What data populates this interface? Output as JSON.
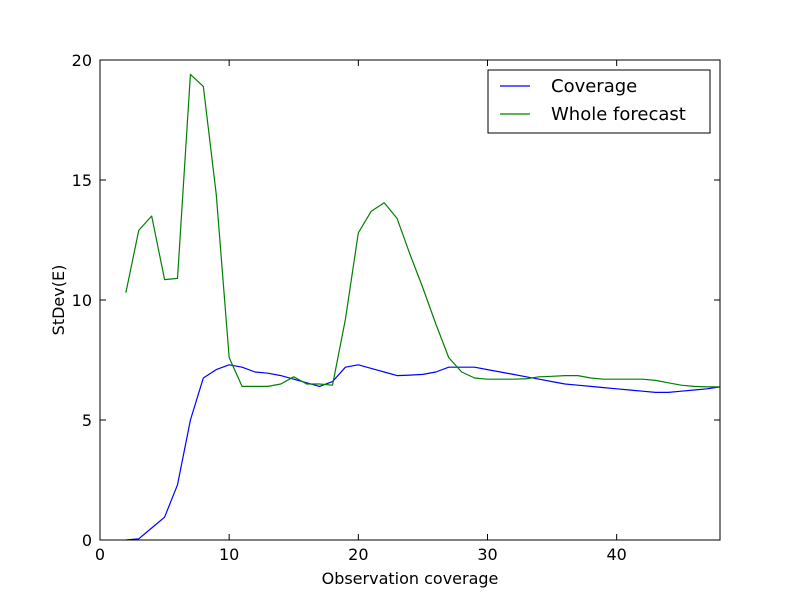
{
  "chart_data": {
    "type": "line",
    "title": "",
    "xlabel": "Observation coverage",
    "ylabel": "StDev(E)",
    "xlim": [
      0,
      48
    ],
    "ylim": [
      0,
      20
    ],
    "xticks": [
      0,
      10,
      20,
      30,
      40
    ],
    "yticks": [
      0,
      5,
      10,
      15,
      20
    ],
    "grid": false,
    "legend_position": "top-right",
    "series": [
      {
        "name": "Coverage",
        "color": "#0000ff",
        "x": [
          2,
          3,
          4,
          5,
          6,
          7,
          8,
          9,
          10,
          11,
          12,
          13,
          14,
          15,
          16,
          17,
          18,
          19,
          20,
          21,
          22,
          23,
          24,
          25,
          26,
          27,
          28,
          29,
          30,
          31,
          32,
          33,
          34,
          35,
          36,
          37,
          38,
          39,
          40,
          41,
          42,
          43,
          44,
          45,
          46,
          47,
          48
        ],
        "y": [
          0.0,
          0.05,
          0.5,
          0.95,
          2.3,
          5.0,
          6.75,
          7.1,
          7.3,
          7.2,
          7.0,
          6.95,
          6.85,
          6.7,
          6.55,
          6.4,
          6.6,
          7.2,
          7.3,
          7.15,
          7.0,
          6.85,
          6.87,
          6.9,
          7.0,
          7.2,
          7.2,
          7.2,
          7.1,
          7.0,
          6.9,
          6.8,
          6.7,
          6.6,
          6.5,
          6.45,
          6.4,
          6.35,
          6.3,
          6.25,
          6.2,
          6.15,
          6.15,
          6.2,
          6.25,
          6.3,
          6.38
        ]
      },
      {
        "name": "Whole forecast",
        "color": "#008000",
        "x": [
          2,
          3,
          4,
          5,
          6,
          7,
          8,
          9,
          10,
          11,
          12,
          13,
          14,
          15,
          16,
          17,
          18,
          19,
          20,
          21,
          22,
          23,
          24,
          25,
          26,
          27,
          28,
          29,
          30,
          31,
          32,
          33,
          34,
          35,
          36,
          37,
          38,
          39,
          40,
          41,
          42,
          43,
          44,
          45,
          46,
          47,
          48
        ],
        "y": [
          10.3,
          12.9,
          13.5,
          10.85,
          10.9,
          19.4,
          18.9,
          14.4,
          7.6,
          6.4,
          6.4,
          6.4,
          6.5,
          6.8,
          6.5,
          6.5,
          6.45,
          9.2,
          12.8,
          13.7,
          14.05,
          13.4,
          11.9,
          10.5,
          9.0,
          7.6,
          7.0,
          6.75,
          6.7,
          6.7,
          6.7,
          6.72,
          6.8,
          6.82,
          6.85,
          6.85,
          6.75,
          6.7,
          6.7,
          6.7,
          6.7,
          6.65,
          6.55,
          6.45,
          6.4,
          6.38,
          6.38
        ]
      }
    ]
  }
}
